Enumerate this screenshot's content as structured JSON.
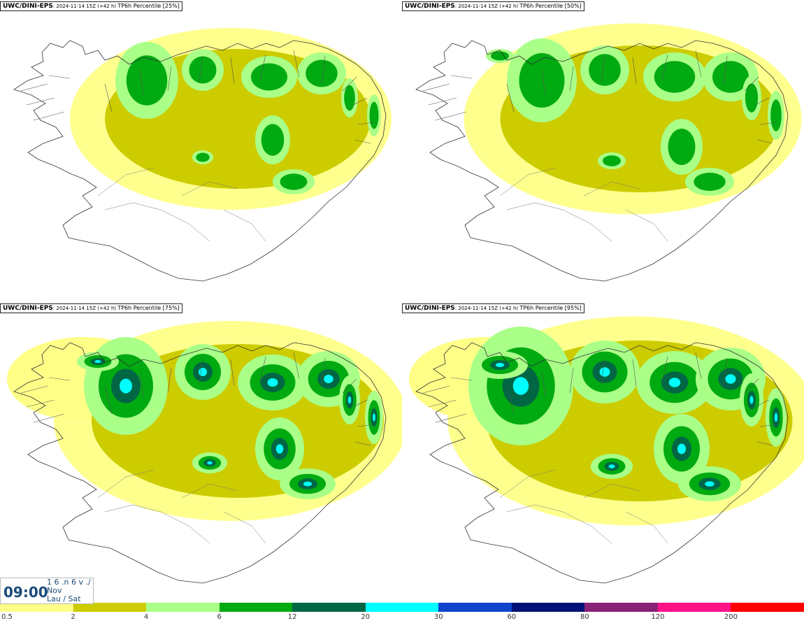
{
  "panels": [
    {
      "source": "UWC/DINI-EPS",
      "meta": ": 2024-11-14 15Z (+42 h) ",
      "product": "TP6h Percentile [25%]",
      "level": 0
    },
    {
      "source": "UWC/DINI-EPS",
      "meta": ": 2024-11-14 15Z (+42 h) ",
      "product": "TP6h Percentile [50%]",
      "level": 1
    },
    {
      "source": "UWC/DINI-EPS",
      "meta": ": 2024-11-14 15Z (+42 h) ",
      "product": "TP6h Percentile [75%]",
      "level": 2
    },
    {
      "source": "UWC/DINI-EPS",
      "meta": ": 2024-11-14 15Z (+42 h) ",
      "product": "TP6h Percentile [95%]",
      "level": 3
    }
  ],
  "time": {
    "clock": "09:00",
    "line1": "1 6 .n 6 v ./",
    "line2": "Nov",
    "line3": "Lau / Sat"
  },
  "legend": {
    "colors": [
      "#ffff88",
      "#cccc00",
      "#aaff88",
      "#00aa11",
      "#006644",
      "#00ffff",
      "#1144cc",
      "#001177",
      "#882277",
      "#ff1188",
      "#ff0000"
    ],
    "labels": [
      "0.5",
      "2",
      "4",
      "6",
      "12",
      "20",
      "30",
      "60",
      "80",
      "120",
      "200"
    ]
  }
}
